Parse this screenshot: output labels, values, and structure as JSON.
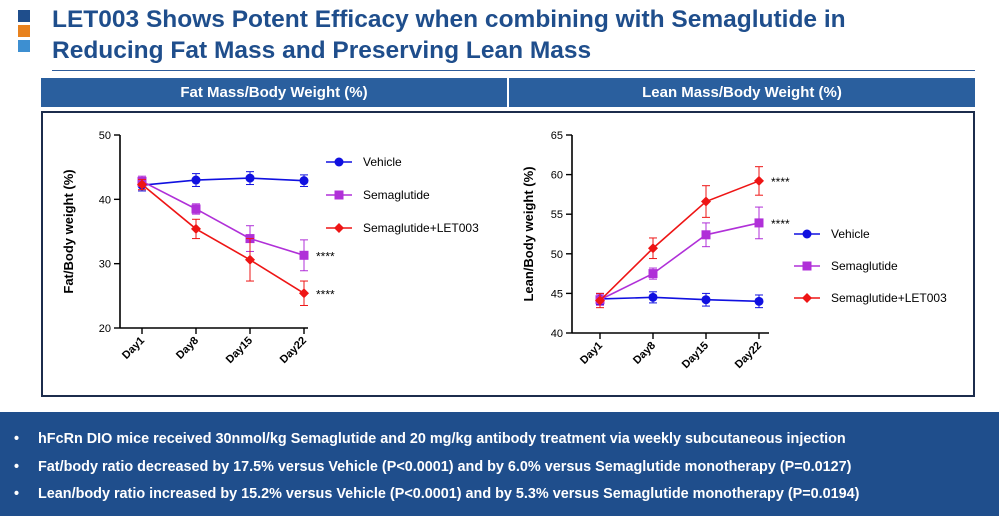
{
  "colors": {
    "title": "#1f4e8c",
    "header_bg": "#2a5f9e",
    "footer_bg": "#1f4e8c",
    "bullet1": "#1f4e8c",
    "bullet2": "#e8821e",
    "bullet3": "#3d8fd1"
  },
  "slide": {
    "title_line1": "LET003 Shows Potent Efficacy when combining with Semaglutide in",
    "title_line2": "Reducing Fat Mass and Preserving Lean Mass"
  },
  "headers": {
    "left": "Fat Mass/Body Weight (%)",
    "right": "Lean Mass/Body Weight (%)"
  },
  "footer": {
    "bullets": [
      "hFcRn DIO mice received 30nmol/kg Semaglutide and 20 mg/kg antibody treatment via weekly subcutaneous injection",
      "Fat/body ratio decreased by 17.5% versus Vehicle (P<0.0001) and by 6.0% versus Semaglutide monotherapy (P=0.0127)",
      "Lean/body ratio increased by 15.2% versus Vehicle (P<0.0001) and by 5.3% versus Semaglutide monotherapy (P=0.0194)"
    ]
  },
  "chart_data": [
    {
      "type": "line",
      "ylabel": "Fat/Body weight (%)",
      "ylim": [
        20,
        50
      ],
      "yticks": [
        20,
        30,
        40,
        50
      ],
      "categories": [
        "Day1",
        "Day8",
        "Day15",
        "Day22"
      ],
      "legend_position": "top-right",
      "series": [
        {
          "name": "Vehicle",
          "color": "#1010e0",
          "marker": "circle",
          "values": [
            42.2,
            43.0,
            43.3,
            42.9
          ],
          "errors": [
            0.9,
            1.0,
            1.0,
            0.9
          ],
          "annotation": ""
        },
        {
          "name": "Semaglutide",
          "color": "#b030d8",
          "marker": "square",
          "values": [
            42.8,
            38.5,
            33.9,
            31.3
          ],
          "errors": [
            0.8,
            0.8,
            2.0,
            2.4
          ],
          "annotation": "****"
        },
        {
          "name": "Semaglutide+LET003",
          "color": "#ee1515",
          "marker": "diamond",
          "values": [
            42.3,
            35.4,
            30.6,
            25.4
          ],
          "errors": [
            0.8,
            1.5,
            3.3,
            1.9
          ],
          "annotation": "****"
        }
      ]
    },
    {
      "type": "line",
      "ylabel": "Lean/Body weight (%)",
      "ylim": [
        40,
        65
      ],
      "yticks": [
        40,
        45,
        50,
        55,
        60,
        65
      ],
      "categories": [
        "Day1",
        "Day8",
        "Day15",
        "Day22"
      ],
      "legend_position": "center-right",
      "series": [
        {
          "name": "Vehicle",
          "color": "#1010e0",
          "marker": "circle",
          "values": [
            44.3,
            44.5,
            44.2,
            44.0
          ],
          "errors": [
            0.7,
            0.7,
            0.8,
            0.8
          ],
          "annotation": ""
        },
        {
          "name": "Semaglutide",
          "color": "#b030d8",
          "marker": "square",
          "values": [
            44.2,
            47.5,
            52.4,
            53.9
          ],
          "errors": [
            0.7,
            0.7,
            1.5,
            2.0
          ],
          "annotation": "****"
        },
        {
          "name": "Semaglutide+LET003",
          "color": "#ee1515",
          "marker": "diamond",
          "values": [
            44.1,
            50.7,
            56.6,
            59.2
          ],
          "errors": [
            0.9,
            1.3,
            2.0,
            1.8
          ],
          "annotation": "****"
        }
      ]
    }
  ]
}
